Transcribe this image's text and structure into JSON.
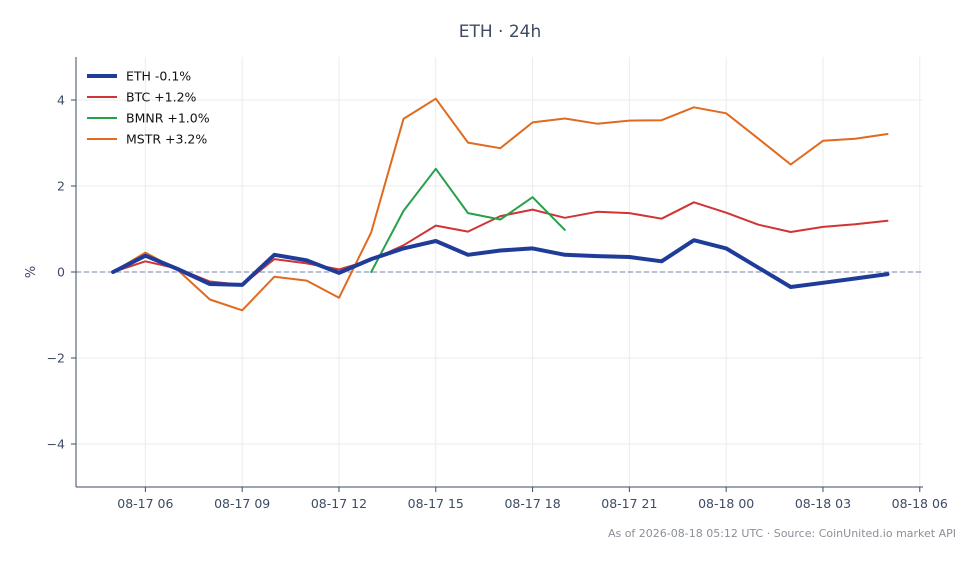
{
  "chart_data": {
    "type": "line",
    "title": "ETH · 24h",
    "xlabel": "",
    "ylabel": "%",
    "x_tick_labels": [
      "08-17 06",
      "08-17 09",
      "08-17 12",
      "08-17 15",
      "08-17 18",
      "08-17 21",
      "08-18 00",
      "08-18 03",
      "08-18 06"
    ],
    "x_tick_hours": [
      6,
      9,
      12,
      15,
      18,
      21,
      24,
      27,
      30
    ],
    "xlim_hours": [
      3.85,
      30.1
    ],
    "y_ticks": [
      -4,
      -2,
      0,
      2,
      4
    ],
    "ylim": [
      -5,
      5
    ],
    "grid": true,
    "zero_line": true,
    "legend_position": "top-left",
    "series": [
      {
        "name": "ETH -0.1%",
        "color": "#1f3c99",
        "line_width": 4,
        "x": [
          5,
          6,
          7,
          8,
          9,
          10,
          11,
          12,
          13,
          14,
          15,
          16,
          17,
          18,
          19,
          20,
          21,
          22,
          23,
          24,
          25,
          26,
          27,
          28,
          29
        ],
        "values": [
          0,
          0.38,
          0.07,
          -0.28,
          -0.3,
          0.4,
          0.27,
          -0.02,
          0.3,
          0.55,
          0.72,
          0.4,
          0.5,
          0.55,
          0.4,
          0.37,
          0.35,
          0.25,
          0.74,
          0.55,
          0.1,
          -0.35,
          -0.25,
          -0.15,
          -0.05
        ]
      },
      {
        "name": "BTC +1.2%",
        "color": "#d03434",
        "line_width": 2,
        "x": [
          5,
          6,
          7,
          8,
          9,
          10,
          11,
          12,
          13,
          14,
          15,
          16,
          17,
          18,
          19,
          20,
          21,
          22,
          23,
          24,
          25,
          26,
          27,
          28,
          29
        ],
        "values": [
          0,
          0.25,
          0.08,
          -0.22,
          -0.3,
          0.3,
          0.2,
          0.06,
          0.28,
          0.62,
          1.08,
          0.94,
          1.3,
          1.45,
          1.26,
          1.4,
          1.37,
          1.24,
          1.62,
          1.38,
          1.1,
          0.93,
          1.05,
          1.11,
          1.19
        ]
      },
      {
        "name": "BMNR +1.0%",
        "color": "#27a04a",
        "line_width": 2,
        "x": [
          13,
          14,
          15,
          16,
          17,
          18,
          19
        ],
        "values": [
          0,
          1.42,
          2.4,
          1.37,
          1.22,
          1.74,
          0.98
        ]
      },
      {
        "name": "MSTR +3.2%",
        "color": "#e06a1f",
        "line_width": 2,
        "x": [
          5,
          6,
          7,
          8,
          9,
          10,
          11,
          12,
          13,
          14,
          15,
          16,
          17,
          18,
          19,
          20,
          21,
          22,
          23,
          24,
          25,
          26,
          27,
          28,
          29
        ],
        "values": [
          0,
          0.45,
          0.05,
          -0.64,
          -0.89,
          -0.11,
          -0.2,
          -0.6,
          0.92,
          3.56,
          4.03,
          3.01,
          2.88,
          3.48,
          3.57,
          3.45,
          3.52,
          3.53,
          3.83,
          3.69,
          3.1,
          2.5,
          3.05,
          3.1,
          3.21
        ]
      }
    ]
  },
  "footer": "As of 2026-08-18 05:12 UTC · Source: CoinUnited.io market API"
}
